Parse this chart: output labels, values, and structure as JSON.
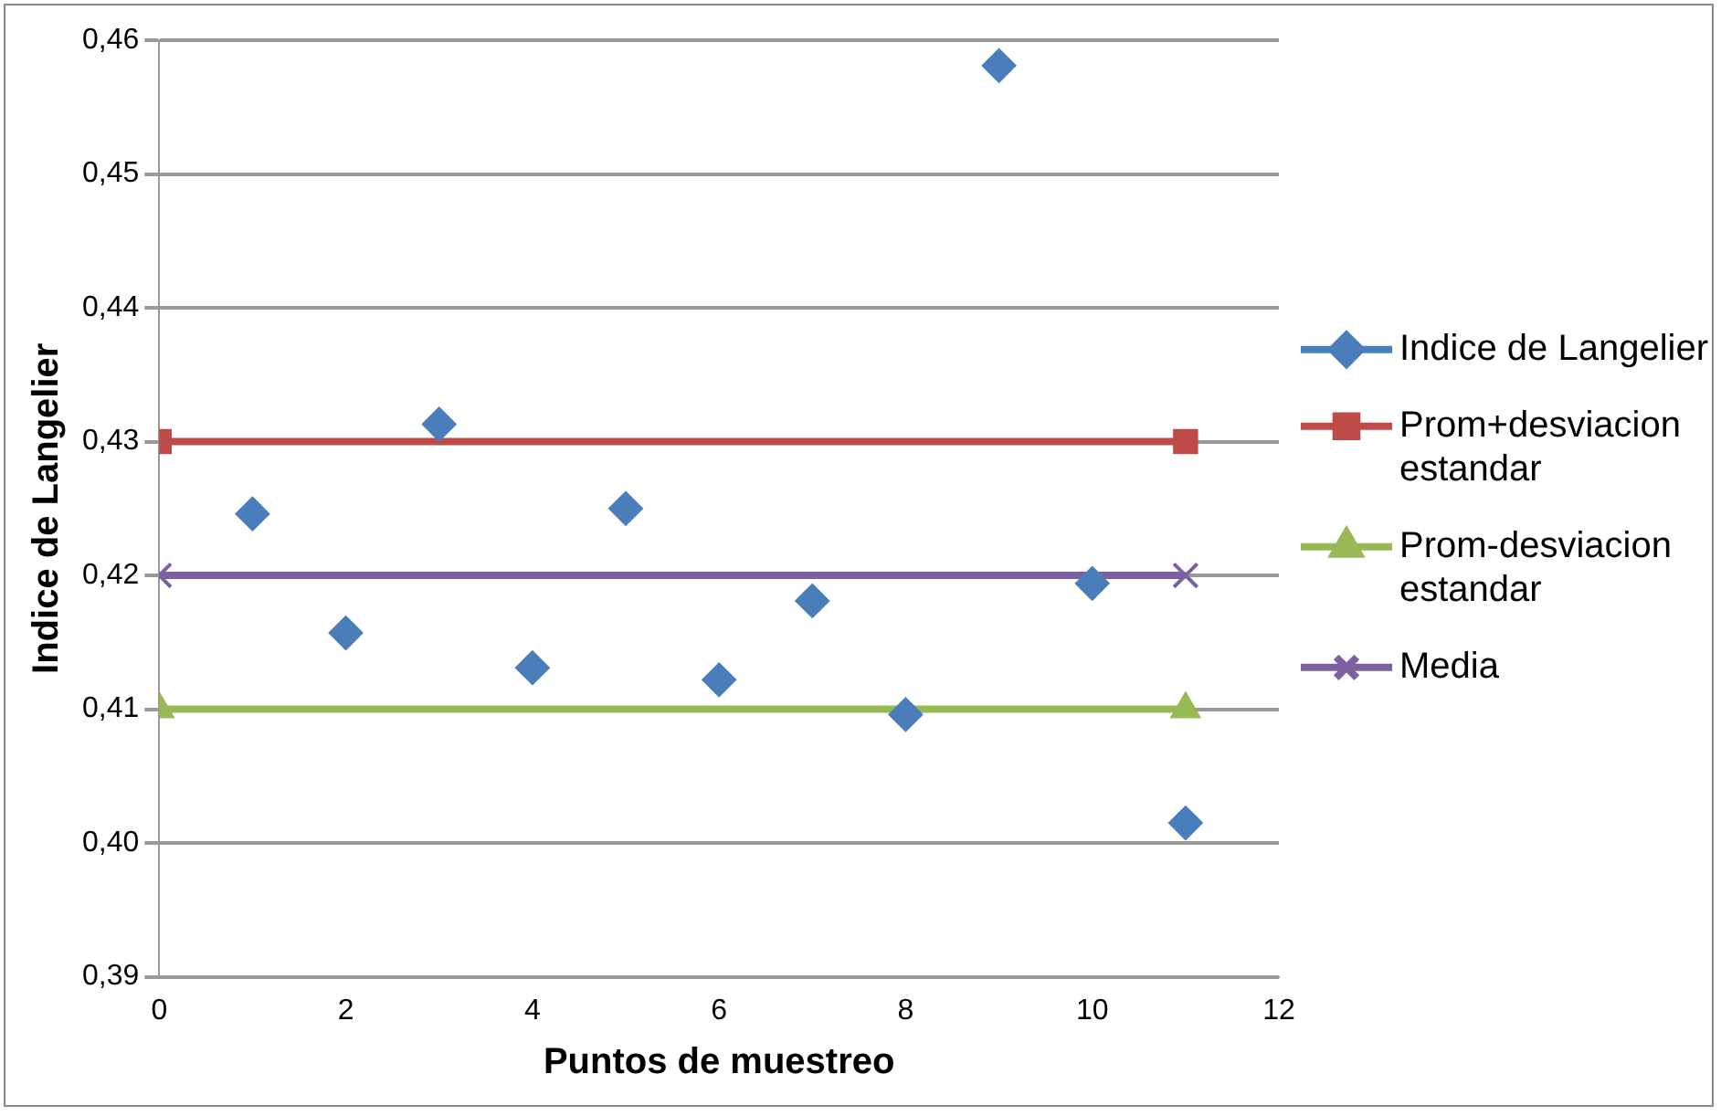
{
  "chart_data": {
    "type": "line",
    "xlabel": "Puntos de muestreo",
    "ylabel": "Indice de Langelier",
    "xlim": [
      0,
      12
    ],
    "xticks": [
      0,
      2,
      4,
      6,
      8,
      10,
      12
    ],
    "ylim": [
      0.39,
      0.46
    ],
    "yticks": [
      {
        "value": 0.39,
        "label": "0,39"
      },
      {
        "value": 0.4,
        "label": "0,40"
      },
      {
        "value": 0.41,
        "label": "0,41"
      },
      {
        "value": 0.42,
        "label": "0,42"
      },
      {
        "value": 0.43,
        "label": "0,43"
      },
      {
        "value": 0.44,
        "label": "0,44"
      },
      {
        "value": 0.45,
        "label": "0,45"
      },
      {
        "value": 0.46,
        "label": "0,46"
      }
    ],
    "grid": "y",
    "legend": "right",
    "series": [
      {
        "name": "Indice de Langelier",
        "type": "scatter",
        "marker": "diamond",
        "color": "#4a7ebb",
        "x": [
          1,
          2,
          3,
          4,
          5,
          6,
          7,
          8,
          9,
          10,
          11
        ],
        "values": [
          0.4246,
          0.4157,
          0.4313,
          0.4131,
          0.425,
          0.4122,
          0.4181,
          0.4096,
          0.4581,
          0.4194,
          0.4015
        ]
      },
      {
        "name": "Prom+desviacion estandar",
        "marker": "square",
        "color": "#be4b48",
        "x": [
          0,
          11
        ],
        "values": [
          0.43,
          0.43
        ]
      },
      {
        "name": "Prom-desviacion estandar",
        "marker": "triangle",
        "color": "#98b954",
        "x": [
          0,
          11
        ],
        "values": [
          0.41,
          0.41
        ]
      },
      {
        "name": "Media",
        "type": "line",
        "marker": "cross",
        "color": "#7d60a0",
        "x": [
          0,
          11
        ],
        "values": [
          0.42,
          0.42
        ]
      }
    ]
  }
}
